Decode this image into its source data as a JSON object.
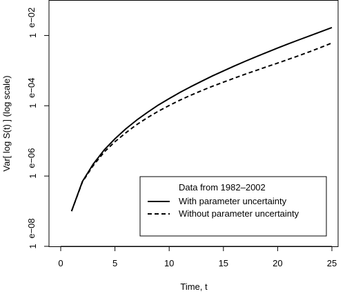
{
  "chart_data": {
    "type": "line",
    "title": "",
    "xlabel": "Time, t",
    "ylabel": "Var[ log S(t) ] (log scale)",
    "xlim": [
      0,
      25
    ],
    "ylim": [
      1e-08,
      0.1
    ],
    "y_scale": "log",
    "grid": false,
    "x_ticks": [
      0,
      5,
      10,
      15,
      20,
      25
    ],
    "x_tick_labels": [
      "0",
      "5",
      "10",
      "15",
      "20",
      "25"
    ],
    "y_ticks": [
      1e-08,
      1e-06,
      0.0001,
      0.01
    ],
    "y_tick_labels": [
      {
        "mantissa": "1",
        "exponent": "e−08"
      },
      {
        "mantissa": "1",
        "exponent": "e−06"
      },
      {
        "mantissa": "1",
        "exponent": "e−04"
      },
      {
        "mantissa": "1",
        "exponent": "e−02"
      }
    ],
    "legend": {
      "title": "Data from 1982–2002",
      "placement": "bottom-right",
      "entries": [
        {
          "label": "With parameter uncertainty",
          "line_style": "solid"
        },
        {
          "label": "Without parameter uncertainty",
          "line_style": "dashed"
        }
      ]
    },
    "x": [
      1,
      2,
      3,
      4,
      5,
      6,
      7,
      8,
      9,
      10,
      11,
      12,
      13,
      14,
      15,
      16,
      17,
      18,
      19,
      20,
      21,
      22,
      23,
      24,
      25
    ],
    "series": [
      {
        "name": "With parameter uncertainty",
        "line_style": "solid",
        "color": "#000000",
        "values": [
          1e-07,
          7e-07,
          2.2e-06,
          5.5e-06,
          1.15e-05,
          2.2e-05,
          3.9e-05,
          6.5e-05,
          0.000105,
          0.00016,
          0.00024,
          0.00035,
          0.0005,
          0.00071,
          0.00098,
          0.00135,
          0.00184,
          0.00248,
          0.0033,
          0.0044,
          0.0058,
          0.0076,
          0.0099,
          0.0129,
          0.0168
        ]
      },
      {
        "name": "Without parameter uncertainty",
        "line_style": "dashed",
        "color": "#000000",
        "values": [
          1e-07,
          6.8e-07,
          2e-06,
          4.8e-06,
          9.5e-06,
          1.7e-05,
          2.9e-05,
          4.6e-05,
          7e-05,
          0.000102,
          0.000145,
          0.0002,
          0.00027,
          0.00036,
          0.00047,
          0.00061,
          0.00079,
          0.00101,
          0.00129,
          0.00164,
          0.0021,
          0.0027,
          0.0035,
          0.0046,
          0.0061
        ]
      }
    ]
  }
}
